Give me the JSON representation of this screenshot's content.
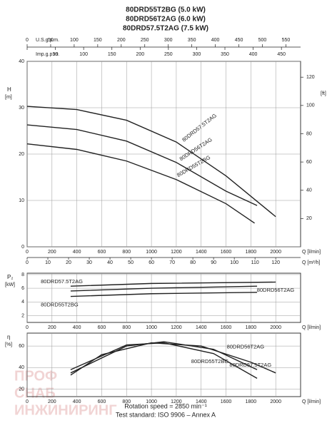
{
  "title": [
    "80DRD55T2BG (5.0 kW)",
    "80DRD56T2AG (6.0 kW)",
    "80DRD57.5T2AG (7.5 kW)"
  ],
  "footer": [
    "Rotation speed = 2850 min⁻¹",
    "Test standard: ISO 9906 – Annex A"
  ],
  "watermark": [
    "ПРОФ",
    "СНАБ",
    "ИНЖИНИРИНГ"
  ],
  "top_axes": [
    {
      "label": "U.S.g.p.m.",
      "lim": [
        0,
        581.2
      ],
      "ticks": [
        0,
        50,
        100,
        150,
        200,
        250,
        300,
        350,
        400,
        450,
        500,
        550
      ]
    },
    {
      "label": "Imp.g.p.m.",
      "lim": [
        0,
        483.9
      ],
      "ticks": [
        0,
        50,
        100,
        150,
        200,
        250,
        300,
        350,
        400,
        450
      ]
    }
  ],
  "chart_data": [
    {
      "type": "line",
      "ylabel": "H",
      "yunit": "[m]",
      "y2unit": "[ft]",
      "xlabel": "Q [l/min]",
      "x2label": "Q [m³/h]",
      "xlim": [
        0,
        2200
      ],
      "xticks": [
        0,
        200,
        400,
        600,
        800,
        1000,
        1200,
        1400,
        1600,
        1800,
        2000
      ],
      "x2lim": [
        0,
        132
      ],
      "x2ticks": [
        0,
        10,
        20,
        30,
        40,
        50,
        60,
        70,
        80,
        90,
        100,
        110,
        120
      ],
      "ylim": [
        0,
        40
      ],
      "yticks": [
        0,
        10,
        20,
        30,
        40
      ],
      "y2lim": [
        0,
        131.2
      ],
      "y2ticks": [
        20,
        40,
        60,
        80,
        100,
        120
      ],
      "grid": true,
      "series": [
        {
          "name": "80DRD57.5T2AG",
          "color": "#222",
          "x": [
            0,
            400,
            800,
            1200,
            1600,
            2000
          ],
          "values": [
            30.3,
            29.6,
            27.3,
            22.6,
            15.3,
            6.5
          ]
        },
        {
          "name": "80DRD56T2AG",
          "color": "#222",
          "x": [
            0,
            400,
            800,
            1200,
            1600,
            1850
          ],
          "values": [
            26.3,
            25.3,
            22.8,
            18.2,
            12,
            8.9
          ]
        },
        {
          "name": "80DRD55T2BG",
          "color": "#222",
          "x": [
            0,
            400,
            800,
            1200,
            1600,
            1830
          ],
          "values": [
            22.2,
            21,
            18.5,
            14.5,
            9.3,
            5.1
          ]
        }
      ]
    },
    {
      "type": "line",
      "ylabel": "P₂",
      "yunit": "[kW]",
      "xlabel": "Q [l/min]",
      "xlim": [
        0,
        2200
      ],
      "xticks": [
        0,
        200,
        400,
        600,
        800,
        1000,
        1200,
        1400,
        1600,
        1800,
        2000
      ],
      "ylim": [
        1,
        8.2
      ],
      "yticks": [
        2,
        4,
        6,
        8
      ],
      "grid": true,
      "series": [
        {
          "name": "80DRD57.5T2AG",
          "color": "#222",
          "x": [
            350,
            1000,
            2000
          ],
          "values": [
            6.3,
            6.7,
            6.9
          ]
        },
        {
          "name": "80DRD56T2AG",
          "color": "#222",
          "x": [
            350,
            1000,
            1850
          ],
          "values": [
            5.6,
            6.0,
            6.3
          ]
        },
        {
          "name": "80DRD55T2BG",
          "color": "#222",
          "x": [
            350,
            1000,
            1850
          ],
          "values": [
            4.8,
            5.2,
            5.4
          ]
        }
      ]
    },
    {
      "type": "line",
      "ylabel": "η",
      "yunit": "[%]",
      "xlabel": "Q [l/min]",
      "xlim": [
        0,
        2200
      ],
      "xticks": [
        0,
        200,
        400,
        600,
        800,
        1000,
        1200,
        1400,
        1600,
        1800,
        2000
      ],
      "ylim": [
        13,
        72
      ],
      "yticks": [
        20,
        40,
        60
      ],
      "grid": true,
      "series": [
        {
          "name": "80DRD57.5T2AG",
          "color": "#222",
          "x": [
            350,
            600,
            1000,
            1400,
            1800,
            2000
          ],
          "values": [
            33,
            52,
            63,
            60,
            45,
            35
          ]
        },
        {
          "name": "80DRD56T2AG",
          "color": "#222",
          "x": [
            350,
            800,
            1100,
            1500,
            1850
          ],
          "values": [
            35,
            60,
            64,
            57,
            38
          ]
        },
        {
          "name": "80DRD55T2BG",
          "color": "#222",
          "x": [
            350,
            800,
            1100,
            1500,
            1850
          ],
          "values": [
            38,
            61,
            63,
            53,
            30
          ]
        }
      ]
    }
  ]
}
